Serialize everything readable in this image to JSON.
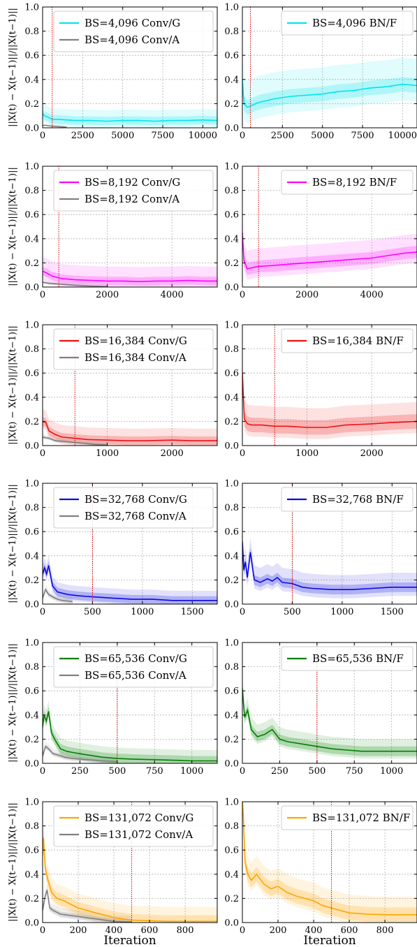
{
  "figure": {
    "xlabel": "Iteration",
    "ylabel": "||X(t) − X(t−1)||/||X(t−1)||",
    "y_ticks": [
      0.0,
      0.2,
      0.4,
      0.6,
      0.8,
      1.0
    ],
    "ylim": [
      0,
      1.0
    ],
    "grid": true,
    "legend_placement": "upper-right"
  },
  "chart_data": [
    {
      "type": "line",
      "color": "#00e5ee",
      "xlim": [
        0,
        10900
      ],
      "x_ticks": [
        0,
        2500,
        5000,
        7500,
        10000
      ],
      "tick_labels": [
        "0",
        "2500",
        "5000",
        "7500",
        "10000"
      ],
      "vline": 600,
      "series": [
        {
          "name": "BS=4,096 Conv/G",
          "color": "#00e5ee",
          "x": [
            0,
            100,
            300,
            600,
            1000,
            2000,
            3000,
            4000,
            5000,
            6000,
            7000,
            8000,
            9000,
            10000,
            10900
          ],
          "y": [
            0.12,
            0.1,
            0.09,
            0.07,
            0.07,
            0.06,
            0.06,
            0.055,
            0.06,
            0.06,
            0.055,
            0.06,
            0.06,
            0.065,
            0.06
          ],
          "band_inner": 0.035,
          "band_outer": 0.09
        },
        {
          "name": "BS=4,096 Conv/A",
          "color": "#808080",
          "x": [
            0,
            200,
            500,
            1000,
            1500
          ],
          "y": [
            0.02,
            0.02,
            0.015,
            0.01,
            0.005
          ],
          "band_inner": 0.005,
          "band_outer": 0.01
        }
      ]
    },
    {
      "type": "line",
      "color": "#00e5ee",
      "xlim": [
        0,
        10900
      ],
      "x_ticks": [
        0,
        2500,
        5000,
        7500,
        10000
      ],
      "tick_labels": [
        "0",
        "2500",
        "5000",
        "7500",
        "10000"
      ],
      "vline": 500,
      "series": [
        {
          "name": "BS=4,096 BN/F",
          "color": "#00e5ee",
          "x": [
            0,
            100,
            300,
            500,
            1000,
            2000,
            3000,
            4000,
            5000,
            6000,
            7000,
            8000,
            9000,
            10000,
            10900
          ],
          "y": [
            0.4,
            0.2,
            0.17,
            0.18,
            0.21,
            0.24,
            0.26,
            0.27,
            0.28,
            0.3,
            0.31,
            0.33,
            0.34,
            0.36,
            0.35
          ],
          "band_inner": 0.06,
          "band_outer": 0.22
        }
      ]
    },
    {
      "type": "line",
      "color": "#ff00ff",
      "xlim": [
        0,
        5400
      ],
      "x_ticks": [
        0,
        2000,
        4000
      ],
      "tick_labels": [
        "0",
        "2000",
        "4000"
      ],
      "vline": 500,
      "series": [
        {
          "name": "BS=8,192 Conv/G",
          "color": "#ff00ff",
          "x": [
            0,
            100,
            300,
            600,
            1000,
            1500,
            2000,
            2500,
            3000,
            3500,
            4000,
            4500,
            5000,
            5400
          ],
          "y": [
            0.13,
            0.12,
            0.09,
            0.07,
            0.06,
            0.055,
            0.05,
            0.05,
            0.045,
            0.05,
            0.05,
            0.055,
            0.05,
            0.05
          ],
          "band_inner": 0.035,
          "band_outer": 0.12
        },
        {
          "name": "BS=8,192 Conv/A",
          "color": "#808080",
          "x": [
            0,
            200,
            500,
            1000,
            1500,
            2000
          ],
          "y": [
            0.04,
            0.03,
            0.025,
            0.015,
            0.008,
            0.004
          ],
          "band_inner": 0.008,
          "band_outer": 0.015
        }
      ]
    },
    {
      "type": "line",
      "color": "#ff00ff",
      "xlim": [
        0,
        5400
      ],
      "x_ticks": [
        0,
        2000,
        4000
      ],
      "tick_labels": [
        "0",
        "2000",
        "4000"
      ],
      "vline": 500,
      "series": [
        {
          "name": "BS=8,192 BN/F",
          "color": "#ff00ff",
          "x": [
            0,
            50,
            150,
            300,
            500,
            1000,
            1500,
            2000,
            2500,
            3000,
            3500,
            4000,
            4500,
            5000,
            5400
          ],
          "y": [
            0.45,
            0.22,
            0.15,
            0.16,
            0.17,
            0.18,
            0.19,
            0.2,
            0.21,
            0.22,
            0.23,
            0.24,
            0.26,
            0.28,
            0.29
          ],
          "band_inner": 0.05,
          "band_outer": 0.15
        }
      ]
    },
    {
      "type": "line",
      "color": "#ee1111",
      "xlim": [
        0,
        2700
      ],
      "x_ticks": [
        0,
        1000,
        2000
      ],
      "tick_labels": [
        "0",
        "1000",
        "2000"
      ],
      "vline": 500,
      "series": [
        {
          "name": "BS=16,384 Conv/G",
          "color": "#ee1111",
          "x": [
            0,
            50,
            100,
            200,
            300,
            500,
            700,
            1000,
            1300,
            1600,
            2000,
            2300,
            2700
          ],
          "y": [
            0.2,
            0.19,
            0.12,
            0.09,
            0.07,
            0.06,
            0.05,
            0.045,
            0.04,
            0.04,
            0.045,
            0.04,
            0.04
          ],
          "band_inner": 0.035,
          "band_outer": 0.1
        },
        {
          "name": "BS=16,384 Conv/A",
          "color": "#808080",
          "x": [
            0,
            100,
            200,
            400,
            600,
            800,
            1000
          ],
          "y": [
            0.07,
            0.06,
            0.04,
            0.03,
            0.02,
            0.01,
            0.005
          ],
          "band_inner": 0.01,
          "band_outer": 0.025
        }
      ]
    },
    {
      "type": "line",
      "color": "#ee1111",
      "xlim": [
        0,
        2700
      ],
      "x_ticks": [
        0,
        1000,
        2000
      ],
      "tick_labels": [
        "0",
        "1000",
        "2000"
      ],
      "vline": 500,
      "series": [
        {
          "name": "BS=16,384 BN/F",
          "color": "#ee1111",
          "x": [
            0,
            30,
            80,
            150,
            300,
            500,
            700,
            1000,
            1300,
            1600,
            2000,
            2300,
            2700
          ],
          "y": [
            0.6,
            0.22,
            0.18,
            0.17,
            0.17,
            0.16,
            0.16,
            0.15,
            0.15,
            0.17,
            0.18,
            0.19,
            0.2
          ],
          "band_inner": 0.06,
          "band_outer": 0.16
        }
      ]
    },
    {
      "type": "line",
      "color": "#0a0ae0",
      "xlim": [
        0,
        1750
      ],
      "x_ticks": [
        0,
        500,
        1000,
        1500
      ],
      "tick_labels": [
        "0",
        "500",
        "1000",
        "1500"
      ],
      "vline": 500,
      "series": [
        {
          "name": "BS=32,768 Conv/G",
          "color": "#0a0ae0",
          "x": [
            0,
            20,
            40,
            60,
            100,
            150,
            250,
            350,
            500,
            700,
            900,
            1100,
            1300,
            1500,
            1750
          ],
          "y": [
            0.25,
            0.3,
            0.25,
            0.32,
            0.15,
            0.1,
            0.08,
            0.07,
            0.06,
            0.05,
            0.04,
            0.04,
            0.03,
            0.03,
            0.03
          ],
          "band_inner": 0.035,
          "band_outer": 0.08
        },
        {
          "name": "BS=32,768 Conv/A",
          "color": "#808080",
          "x": [
            0,
            30,
            60,
            100,
            150,
            200,
            300
          ],
          "y": [
            0.05,
            0.12,
            0.08,
            0.06,
            0.04,
            0.03,
            0.02
          ],
          "band_inner": 0.015,
          "band_outer": 0.04
        }
      ]
    },
    {
      "type": "line",
      "color": "#0a0ae0",
      "xlim": [
        0,
        1750
      ],
      "x_ticks": [
        0,
        500,
        1000,
        1500
      ],
      "tick_labels": [
        "0",
        "500",
        "1000",
        "1500"
      ],
      "vline": 500,
      "series": [
        {
          "name": "BS=32,768 BN/F",
          "color": "#0a0ae0",
          "x": [
            0,
            15,
            30,
            50,
            80,
            120,
            180,
            250,
            300,
            350,
            400,
            500,
            600,
            700,
            900,
            1100,
            1300,
            1500,
            1750
          ],
          "y": [
            0.52,
            0.28,
            0.35,
            0.22,
            0.43,
            0.2,
            0.18,
            0.21,
            0.19,
            0.22,
            0.18,
            0.17,
            0.14,
            0.13,
            0.12,
            0.12,
            0.13,
            0.14,
            0.14
          ],
          "band_inner": 0.04,
          "band_outer": 0.12
        }
      ]
    },
    {
      "type": "line",
      "color": "#008000",
      "xlim": [
        0,
        1170
      ],
      "x_ticks": [
        0,
        250,
        500,
        750,
        1000
      ],
      "tick_labels": [
        "0",
        "250",
        "500",
        "750",
        "1000"
      ],
      "vline": 500,
      "series": [
        {
          "name": "BS=65,536 Conv/G",
          "color": "#008000",
          "x": [
            0,
            10,
            25,
            40,
            60,
            90,
            120,
            160,
            200,
            250,
            300,
            400,
            500,
            600,
            750,
            900,
            1000,
            1170
          ],
          "y": [
            0.3,
            0.4,
            0.35,
            0.43,
            0.25,
            0.18,
            0.12,
            0.1,
            0.09,
            0.08,
            0.07,
            0.05,
            0.04,
            0.035,
            0.03,
            0.025,
            0.02,
            0.02
          ],
          "band_inner": 0.04,
          "band_outer": 0.09
        },
        {
          "name": "BS=65,536 Conv/A",
          "color": "#808080",
          "x": [
            0,
            20,
            40,
            70,
            100,
            150,
            200,
            250,
            300,
            400,
            500
          ],
          "y": [
            0.06,
            0.14,
            0.12,
            0.08,
            0.07,
            0.05,
            0.04,
            0.035,
            0.03,
            0.02,
            0.015
          ],
          "band_inner": 0.015,
          "band_outer": 0.04
        }
      ]
    },
    {
      "type": "line",
      "color": "#008000",
      "xlim": [
        0,
        1170
      ],
      "x_ticks": [
        0,
        250,
        500,
        750,
        1000
      ],
      "tick_labels": [
        "0",
        "250",
        "500",
        "750",
        "1000"
      ],
      "vline": 500,
      "series": [
        {
          "name": "BS=65,536 BN/F",
          "color": "#008000",
          "x": [
            0,
            15,
            35,
            60,
            100,
            150,
            200,
            250,
            300,
            400,
            500,
            600,
            700,
            800,
            900,
            1000,
            1170
          ],
          "y": [
            0.62,
            0.38,
            0.44,
            0.28,
            0.22,
            0.24,
            0.28,
            0.2,
            0.18,
            0.16,
            0.14,
            0.12,
            0.11,
            0.1,
            0.1,
            0.1,
            0.1
          ],
          "band_inner": 0.04,
          "band_outer": 0.1
        }
      ]
    },
    {
      "type": "line",
      "color": "#ffa500",
      "xlim": [
        0,
        980
      ],
      "x_ticks": [
        0,
        200,
        400,
        600,
        800
      ],
      "tick_labels": [
        "0",
        "200",
        "400",
        "600",
        "800"
      ],
      "vline": 500,
      "series": [
        {
          "name": "BS=131,072 Conv/G",
          "color": "#ffa500",
          "x": [
            0,
            5,
            15,
            30,
            50,
            80,
            120,
            160,
            200,
            250,
            300,
            350,
            400,
            450,
            500,
            600,
            700,
            800,
            980
          ],
          "y": [
            0.55,
            0.7,
            0.45,
            0.35,
            0.25,
            0.2,
            0.18,
            0.15,
            0.12,
            0.1,
            0.08,
            0.06,
            0.04,
            0.03,
            0.02,
            0.015,
            0.01,
            0.01,
            0.01
          ],
          "band_inner": 0.05,
          "band_outer": 0.12
        },
        {
          "name": "BS=131,072 Conv/A",
          "color": "#808080",
          "x": [
            0,
            15,
            25,
            40,
            60,
            100,
            150,
            200,
            250,
            300,
            400,
            500
          ],
          "y": [
            0.1,
            0.22,
            0.27,
            0.12,
            0.1,
            0.07,
            0.06,
            0.05,
            0.04,
            0.03,
            0.01,
            0.005
          ],
          "band_inner": 0.02,
          "band_outer": 0.05
        }
      ]
    },
    {
      "type": "line",
      "color": "#ffa500",
      "xlim": [
        0,
        980
      ],
      "x_ticks": [
        0,
        200,
        400,
        600,
        800
      ],
      "tick_labels": [
        "0",
        "200",
        "400",
        "600",
        "800"
      ],
      "vline": 500,
      "series": [
        {
          "name": "BS=131,072 BN/F",
          "color": "#ffa500",
          "x": [
            0,
            5,
            15,
            30,
            50,
            80,
            120,
            160,
            200,
            250,
            300,
            350,
            400,
            450,
            500,
            550,
            600,
            700,
            800,
            900,
            980
          ],
          "y": [
            1.0,
            0.9,
            0.5,
            0.4,
            0.35,
            0.4,
            0.32,
            0.28,
            0.3,
            0.25,
            0.22,
            0.2,
            0.18,
            0.14,
            0.12,
            0.1,
            0.08,
            0.07,
            0.065,
            0.065,
            0.065
          ],
          "band_inner": 0.06,
          "band_outer": 0.15
        }
      ]
    }
  ]
}
